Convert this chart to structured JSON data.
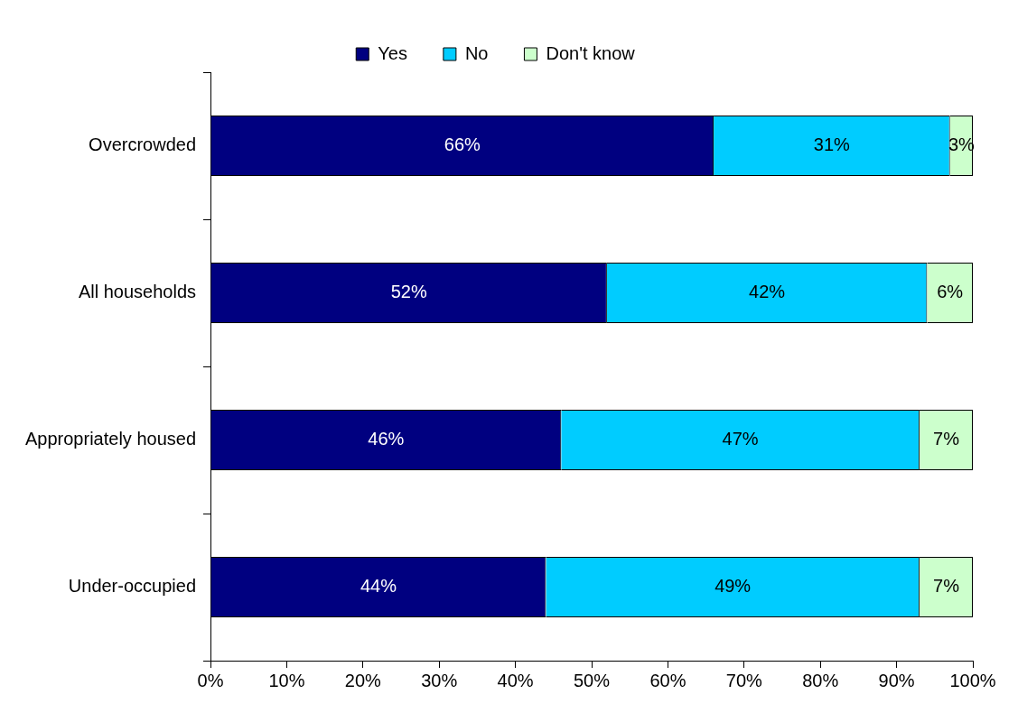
{
  "chart_data": {
    "type": "bar",
    "orientation": "horizontal",
    "stacked": true,
    "legend": "top",
    "categories": [
      "Overcrowded",
      "All households",
      "Appropriately housed",
      "Under-occupied"
    ],
    "series": [
      {
        "name": "Yes",
        "color": "#000080",
        "values": [
          66,
          52,
          46,
          44
        ],
        "value_labels": [
          "66%",
          "52%",
          "46%",
          "44%"
        ]
      },
      {
        "name": "No",
        "color": "#00ccff",
        "values": [
          31,
          42,
          47,
          49
        ],
        "value_labels": [
          "31%",
          "42%",
          "47%",
          "49%"
        ]
      },
      {
        "name": "Don't know",
        "color": "#ccffcc",
        "values": [
          3,
          6,
          7,
          7
        ],
        "value_labels": [
          "3%",
          "6%",
          "7%",
          "7%"
        ]
      }
    ],
    "xlim": [
      0,
      100
    ],
    "xticks": [
      {
        "value": 0,
        "label": "0%"
      },
      {
        "value": 10,
        "label": "10%"
      },
      {
        "value": 20,
        "label": "20%"
      },
      {
        "value": 30,
        "label": "30%"
      },
      {
        "value": 40,
        "label": "40%"
      },
      {
        "value": 50,
        "label": "50%"
      },
      {
        "value": 60,
        "label": "60%"
      },
      {
        "value": 70,
        "label": "70%"
      },
      {
        "value": 80,
        "label": "80%"
      },
      {
        "value": 90,
        "label": "90%"
      },
      {
        "value": 100,
        "label": "100%"
      }
    ]
  }
}
